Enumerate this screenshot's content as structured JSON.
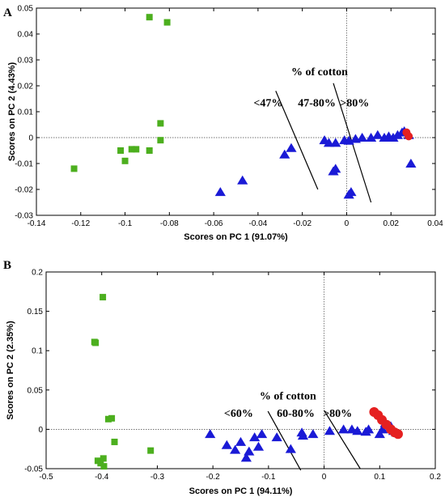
{
  "chart_data": [
    {
      "panel": "A",
      "type": "scatter",
      "xlabel": "Scores on PC 1 (91.07%)",
      "ylabel": "Scores on PC 2 (4.43%)",
      "xlim": [
        -0.14,
        0.04
      ],
      "ylim": [
        -0.03,
        0.05
      ],
      "xticks": [
        -0.14,
        -0.12,
        -0.1,
        -0.08,
        -0.06,
        -0.04,
        -0.02,
        0,
        0.02,
        0.04
      ],
      "yticks": [
        -0.03,
        -0.02,
        -0.01,
        0,
        0.01,
        0.02,
        0.03,
        0.04,
        0.05
      ],
      "xtick_labels": [
        "-0.14",
        "-0.12",
        "-0.1",
        "-0.08",
        "-0.06",
        "-0.04",
        "-0.02",
        "0",
        "0.02",
        "0.04"
      ],
      "ytick_labels": [
        "-0.03",
        "-0.02",
        "-0.01",
        "0",
        "0.01",
        "0.02",
        "0.03",
        "0.04",
        "0.05"
      ],
      "grid": false,
      "series": [
        {
          "marker": "square",
          "color": "#4caf1e",
          "points": [
            [
              -0.089,
              0.0465
            ],
            [
              -0.081,
              0.0445
            ],
            [
              -0.084,
              0.0055
            ],
            [
              -0.084,
              -0.001
            ],
            [
              -0.089,
              -0.005
            ],
            [
              -0.095,
              -0.0045
            ],
            [
              -0.097,
              -0.0045
            ],
            [
              -0.1,
              -0.009
            ],
            [
              -0.102,
              -0.005
            ],
            [
              -0.123,
              -0.012
            ]
          ]
        },
        {
          "marker": "triangle",
          "color": "#1a1ad6",
          "points": [
            [
              -0.057,
              -0.021
            ],
            [
              -0.047,
              -0.0165
            ],
            [
              -0.028,
              -0.0065
            ],
            [
              -0.025,
              -0.004
            ],
            [
              -0.01,
              -0.001
            ],
            [
              -0.008,
              -0.002
            ],
            [
              -0.005,
              -0.002
            ],
            [
              -0.006,
              -0.013
            ],
            [
              -0.005,
              -0.012
            ],
            [
              -0.001,
              -0.001
            ],
            [
              0.001,
              -0.0012
            ],
            [
              0.004,
              -0.0005
            ],
            [
              0.007,
              0.0
            ],
            [
              0.011,
              0.0
            ],
            [
              0.014,
              0.001
            ],
            [
              0.017,
              0.0
            ],
            [
              0.019,
              0.0005
            ],
            [
              0.021,
              0.0
            ],
            [
              0.023,
              0.001
            ],
            [
              0.025,
              0.002
            ],
            [
              0.026,
              0.0025
            ],
            [
              0.028,
              0.001
            ],
            [
              0.001,
              -0.022
            ],
            [
              0.002,
              -0.021
            ],
            [
              0.029,
              -0.01
            ]
          ]
        },
        {
          "marker": "circle",
          "color": "#e52020",
          "points": [
            [
              0.027,
              0.002
            ],
            [
              0.028,
              0.0005
            ]
          ]
        }
      ],
      "annotations": {
        "header": "% of cotton",
        "regions": [
          "<47%",
          "47-80%",
          ">80%"
        ]
      }
    },
    {
      "panel": "B",
      "type": "scatter",
      "xlabel": "Scores on PC 1 (94.11%)",
      "ylabel": "Scores on PC 2 (2.35%)",
      "xlim": [
        -0.5,
        0.2
      ],
      "ylim": [
        -0.05,
        0.2
      ],
      "xticks": [
        -0.5,
        -0.4,
        -0.3,
        -0.2,
        -0.1,
        0,
        0.1,
        0.2
      ],
      "yticks": [
        -0.05,
        0,
        0.05,
        0.1,
        0.15,
        0.2
      ],
      "xtick_labels": [
        "-0.5",
        "-0.4",
        "-0.3",
        "-0.2",
        "-0.1",
        "0",
        "0.1",
        "0.2"
      ],
      "ytick_labels": [
        "-0.05",
        "0",
        "0.05",
        "0.1",
        "0.15",
        "0.2"
      ],
      "grid": false,
      "series": [
        {
          "marker": "square",
          "color": "#4caf1e",
          "points": [
            [
              -0.398,
              0.168
            ],
            [
              -0.413,
              0.111
            ],
            [
              -0.411,
              0.11
            ],
            [
              -0.388,
              0.013
            ],
            [
              -0.382,
              0.014
            ],
            [
              -0.377,
              -0.016
            ],
            [
              -0.312,
              -0.027
            ],
            [
              -0.407,
              -0.04
            ],
            [
              -0.402,
              -0.043
            ],
            [
              -0.397,
              -0.037
            ],
            [
              -0.396,
              -0.047
            ]
          ]
        },
        {
          "marker": "triangle",
          "color": "#1a1ad6",
          "points": [
            [
              -0.205,
              -0.006
            ],
            [
              -0.175,
              -0.02
            ],
            [
              -0.16,
              -0.026
            ],
            [
              -0.15,
              -0.016
            ],
            [
              -0.14,
              -0.036
            ],
            [
              -0.135,
              -0.028
            ],
            [
              -0.125,
              -0.01
            ],
            [
              -0.118,
              -0.022
            ],
            [
              -0.112,
              -0.006
            ],
            [
              -0.085,
              -0.01
            ],
            [
              -0.06,
              -0.025
            ],
            [
              -0.04,
              -0.004
            ],
            [
              -0.038,
              -0.008
            ],
            [
              -0.02,
              -0.006
            ],
            [
              0.01,
              -0.002
            ],
            [
              0.035,
              0.0
            ],
            [
              0.05,
              0.0
            ],
            [
              0.06,
              -0.002
            ],
            [
              0.075,
              -0.003
            ],
            [
              0.08,
              0.0
            ],
            [
              0.1,
              -0.006
            ],
            [
              0.105,
              0.0
            ],
            [
              0.11,
              0.008
            ],
            [
              0.12,
              0.004
            ],
            [
              0.125,
              -0.002
            ],
            [
              0.13,
              -0.004
            ]
          ]
        },
        {
          "marker": "circle",
          "color": "#e52020",
          "points": [
            [
              0.09,
              0.022
            ],
            [
              0.097,
              0.018
            ],
            [
              0.104,
              0.012
            ],
            [
              0.112,
              0.006
            ],
            [
              0.12,
              0.0
            ],
            [
              0.127,
              -0.004
            ],
            [
              0.133,
              -0.006
            ]
          ]
        }
      ],
      "annotations": {
        "header": "% of cotton",
        "regions": [
          "<60%",
          "60-80%",
          ">80%"
        ]
      }
    }
  ]
}
